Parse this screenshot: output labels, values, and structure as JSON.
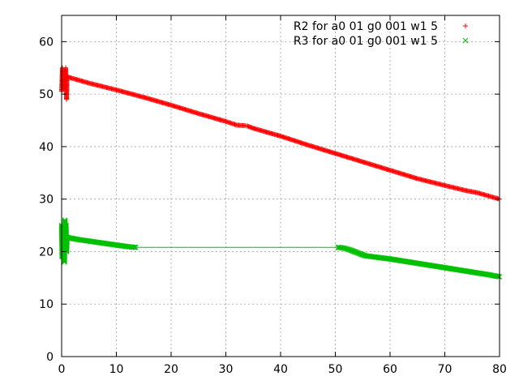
{
  "chart_data": {
    "type": "scatter",
    "title": "",
    "xlabel": "",
    "ylabel": "",
    "xlim": [
      0,
      80
    ],
    "ylim": [
      0,
      65
    ],
    "xticks": [
      0,
      10,
      20,
      30,
      40,
      50,
      60,
      70,
      80
    ],
    "yticks": [
      0,
      10,
      20,
      30,
      40,
      50,
      60
    ],
    "grid": true,
    "legend_position": "top-right",
    "series": [
      {
        "name": "R2 for a0 01 g0 001 w1 5",
        "color": "#ff0000",
        "marker": "plus",
        "segments": [
          {
            "x": [
              0,
              0.15,
              0.3,
              0.45,
              0.6,
              0.75,
              0.9,
              1.0
            ],
            "y": [
              50.5,
              55,
              51,
              52.5,
              53.5,
              55,
              49,
              53.5
            ]
          },
          {
            "x": [
              1.0,
              5,
              10,
              15,
              20,
              25,
              30,
              32,
              33.5,
              34,
              35,
              40,
              45,
              50,
              55,
              60,
              65,
              70,
              72,
              74,
              76,
              78,
              80
            ],
            "y": [
              53.3,
              52.1,
              50.8,
              49.4,
              47.9,
              46.3,
              44.8,
              44.1,
              44.0,
              43.9,
              43.5,
              42.0,
              40.3,
              38.7,
              37.1,
              35.5,
              33.9,
              32.6,
              32.1,
              31.6,
              31.2,
              30.6,
              30.0
            ]
          }
        ]
      },
      {
        "name": "R3 for a0 01 g0 001 w1 5",
        "color": "#00c000",
        "marker": "cross",
        "segments": [
          {
            "x": [
              0,
              0.1,
              0.2,
              0.3,
              0.4,
              0.5,
              0.6,
              0.7,
              0.8,
              0.9,
              1.0
            ],
            "y": [
              25,
              19,
              24,
              21,
              23.5,
              18,
              26,
              22,
              25,
              20,
              22.7
            ]
          },
          {
            "x": [
              1.0,
              3,
              5,
              7,
              9,
              11,
              12.5,
              13.5
            ],
            "y": [
              22.7,
              22.3,
              22.0,
              21.7,
              21.4,
              21.1,
              20.9,
              20.8
            ]
          },
          {
            "x": [
              13.5,
              50.5
            ],
            "y": [
              20.8,
              20.8
            ]
          },
          {
            "x": [
              50.5,
              51.5,
              52.5,
              53.5,
              54.5,
              55.5,
              57,
              60,
              63,
              66,
              69,
              72,
              75,
              78,
              80
            ],
            "y": [
              20.8,
              20.7,
              20.4,
              20.0,
              19.6,
              19.2,
              19.0,
              18.6,
              18.1,
              17.6,
              17.1,
              16.6,
              16.1,
              15.6,
              15.2
            ]
          }
        ]
      }
    ]
  }
}
